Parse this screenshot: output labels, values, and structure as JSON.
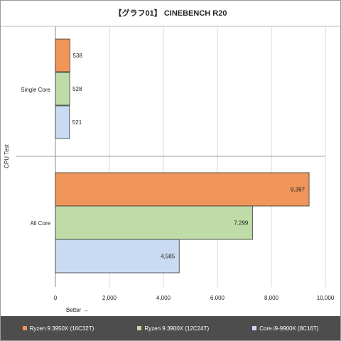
{
  "chart_data": {
    "type": "bar",
    "orientation": "horizontal",
    "title": "【グラフ01】 CINEBENCH R20",
    "ylabel": "CPU Test",
    "xlabel": "Better →",
    "categories": [
      "Single Core",
      "All Core"
    ],
    "series": [
      {
        "name": "Ryzen 9 3950X (16C32T)",
        "color": "#f0965a",
        "values": [
          538,
          9397
        ],
        "labels": [
          "538",
          "9,397"
        ]
      },
      {
        "name": "Ryzen 9 3900X (12C24T)",
        "color": "#bfdca8",
        "values": [
          528,
          7299
        ],
        "labels": [
          "528",
          "7,299"
        ]
      },
      {
        "name": "Core i9-9900K (8C16T)",
        "color": "#c9dbf2",
        "values": [
          521,
          4585
        ],
        "labels": [
          "521",
          "4,585"
        ]
      }
    ],
    "xlim": [
      0,
      10000
    ],
    "xticks": [
      0,
      2000,
      4000,
      6000,
      8000,
      10000
    ],
    "xtick_labels": [
      "0",
      "2,000",
      "4,000",
      "6,000",
      "8,000",
      "10,000"
    ],
    "grid": true,
    "legend_position": "bottom"
  }
}
